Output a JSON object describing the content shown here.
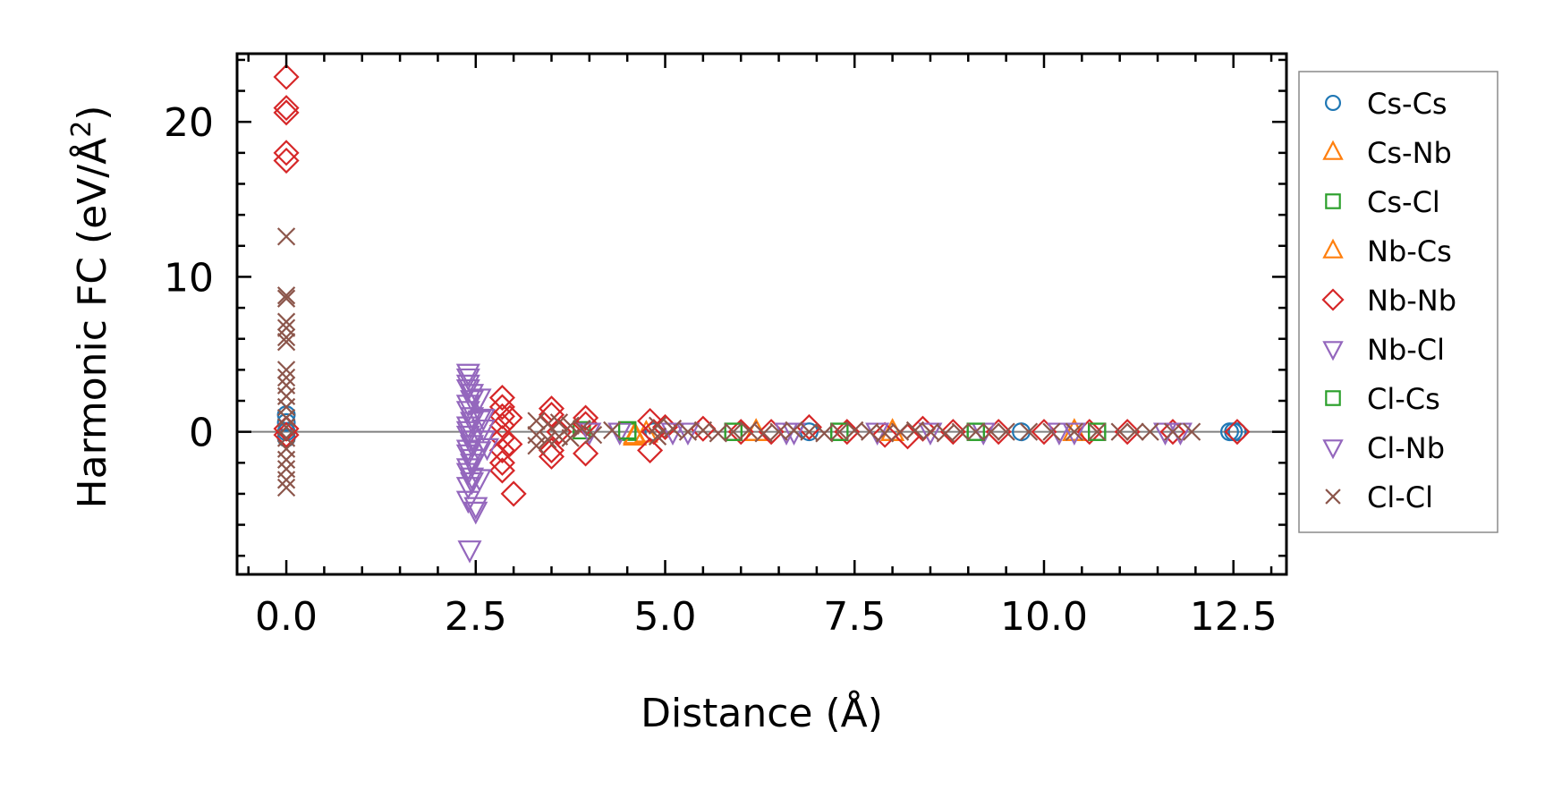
{
  "chart_data": {
    "type": "scatter",
    "title": "",
    "xlabel": "Distance (Å)",
    "ylabel": "Harmonic FC (eV/Å",
    "ylabel_sup": "2",
    "ylabel_end": ")",
    "xlim": [
      -0.65,
      13.2
    ],
    "ylim": [
      -9.2,
      24.4
    ],
    "xticks": [
      0.0,
      2.5,
      5.0,
      7.5,
      10.0,
      12.5
    ],
    "xtick_labels": [
      "0.0",
      "2.5",
      "5.0",
      "7.5",
      "10.0",
      "12.5"
    ],
    "yticks": [
      0,
      10,
      20
    ],
    "ytick_labels": [
      "0",
      "10",
      "20"
    ],
    "grid": false,
    "zero_line": true,
    "legend_position": "right",
    "series": [
      {
        "name": "Cs-Cs",
        "marker": "circle",
        "color": "#1f77b4",
        "points": [
          [
            0.0,
            1.1
          ],
          [
            0.0,
            0.6
          ],
          [
            0.0,
            0.0
          ],
          [
            0.0,
            -0.4
          ],
          [
            4.85,
            0.0
          ],
          [
            6.9,
            0.0
          ],
          [
            9.7,
            0.0
          ],
          [
            12.45,
            0.0
          ],
          [
            12.5,
            0.0
          ],
          [
            12.55,
            0.0
          ]
        ]
      },
      {
        "name": "Cs-Nb",
        "marker": "triangle-up",
        "color": "#ff7f0e",
        "points": [
          [
            4.6,
            -0.2
          ],
          [
            4.75,
            -0.1
          ],
          [
            6.2,
            0.0
          ],
          [
            8.0,
            0.0
          ],
          [
            10.4,
            0.0
          ]
        ]
      },
      {
        "name": "Cs-Cl",
        "marker": "square",
        "color": "#2ca02c",
        "points": [
          [
            3.9,
            0.1
          ],
          [
            4.5,
            0.0
          ],
          [
            5.9,
            0.0
          ],
          [
            7.3,
            0.0
          ],
          [
            9.1,
            0.0
          ],
          [
            10.7,
            0.0
          ]
        ]
      },
      {
        "name": "Nb-Cs",
        "marker": "triangle-up",
        "color": "#ff7f0e",
        "points": [
          [
            4.6,
            -0.3
          ],
          [
            6.2,
            0.0
          ],
          [
            8.0,
            0.0
          ],
          [
            10.4,
            0.0
          ]
        ]
      },
      {
        "name": "Nb-Nb",
        "marker": "diamond",
        "color": "#d62728",
        "points": [
          [
            0.0,
            22.9
          ],
          [
            0.0,
            20.9
          ],
          [
            0.0,
            20.6
          ],
          [
            0.0,
            18.0
          ],
          [
            0.0,
            17.5
          ],
          [
            0.0,
            0.2
          ],
          [
            0.0,
            -0.2
          ],
          [
            2.85,
            2.2
          ],
          [
            2.85,
            1.6
          ],
          [
            2.85,
            1.0
          ],
          [
            2.85,
            0.4
          ],
          [
            2.85,
            -0.4
          ],
          [
            2.85,
            -1.2
          ],
          [
            2.85,
            -2.0
          ],
          [
            2.85,
            -2.5
          ],
          [
            2.95,
            0.9
          ],
          [
            2.95,
            -0.8
          ],
          [
            3.0,
            -4.0
          ],
          [
            3.5,
            1.5
          ],
          [
            3.5,
            1.1
          ],
          [
            3.5,
            -1.2
          ],
          [
            3.5,
            -1.6
          ],
          [
            3.6,
            0.0
          ],
          [
            3.95,
            0.9
          ],
          [
            3.95,
            0.5
          ],
          [
            3.95,
            -1.4
          ],
          [
            4.8,
            0.7
          ],
          [
            4.8,
            -1.2
          ],
          [
            4.85,
            0.0
          ],
          [
            5.0,
            0.3
          ],
          [
            5.5,
            0.2
          ],
          [
            6.0,
            0.0
          ],
          [
            6.4,
            0.0
          ],
          [
            6.9,
            0.3
          ],
          [
            7.4,
            0.0
          ],
          [
            7.9,
            -0.2
          ],
          [
            8.2,
            -0.3
          ],
          [
            8.4,
            0.2
          ],
          [
            8.8,
            0.0
          ],
          [
            9.4,
            0.0
          ],
          [
            10.0,
            0.0
          ],
          [
            10.6,
            0.0
          ],
          [
            11.1,
            0.0
          ],
          [
            11.7,
            0.0
          ],
          [
            12.55,
            0.0
          ]
        ]
      },
      {
        "name": "Nb-Cl",
        "marker": "triangle-down",
        "color": "#9467bd",
        "points": [
          [
            2.4,
            3.8
          ],
          [
            2.4,
            3.1
          ],
          [
            2.45,
            2.5
          ],
          [
            2.4,
            1.8
          ],
          [
            2.45,
            1.0
          ],
          [
            2.4,
            0.4
          ],
          [
            2.4,
            -0.2
          ],
          [
            2.45,
            -0.8
          ],
          [
            2.4,
            -1.4
          ],
          [
            2.45,
            -2.0
          ],
          [
            2.4,
            -2.6
          ],
          [
            2.45,
            -3.2
          ],
          [
            2.4,
            -4.4
          ],
          [
            2.5,
            -5.1
          ],
          [
            2.42,
            -7.6
          ],
          [
            2.55,
            2.2
          ],
          [
            2.55,
            0.8
          ],
          [
            2.55,
            -1.2
          ],
          [
            2.6,
            0.2
          ],
          [
            2.55,
            -3.0
          ],
          [
            2.65,
            -1.0
          ],
          [
            4.4,
            0.0
          ],
          [
            5.3,
            0.0
          ],
          [
            6.6,
            0.0
          ],
          [
            7.8,
            0.0
          ],
          [
            9.2,
            0.0
          ],
          [
            10.4,
            0.0
          ],
          [
            11.6,
            0.0
          ]
        ]
      },
      {
        "name": "Cl-Cs",
        "marker": "square",
        "color": "#2ca02c",
        "points": [
          [
            4.5,
            0.1
          ],
          [
            5.9,
            0.0
          ],
          [
            7.3,
            0.0
          ],
          [
            9.1,
            0.0
          ],
          [
            10.7,
            0.0
          ]
        ]
      },
      {
        "name": "Cl-Nb",
        "marker": "triangle-down",
        "color": "#9467bd",
        "points": [
          [
            2.4,
            3.5
          ],
          [
            2.4,
            2.8
          ],
          [
            2.45,
            2.1
          ],
          [
            2.4,
            1.4
          ],
          [
            2.45,
            0.7
          ],
          [
            2.4,
            0.1
          ],
          [
            2.45,
            -0.5
          ],
          [
            2.4,
            -1.1
          ],
          [
            2.45,
            -1.7
          ],
          [
            2.4,
            -2.3
          ],
          [
            2.45,
            -2.9
          ],
          [
            2.4,
            -3.5
          ],
          [
            2.5,
            -4.8
          ],
          [
            2.6,
            0.9
          ],
          [
            2.6,
            -0.5
          ],
          [
            4.0,
            0.0
          ],
          [
            5.1,
            0.0
          ],
          [
            6.7,
            0.0
          ],
          [
            8.5,
            0.0
          ],
          [
            10.2,
            0.0
          ],
          [
            11.8,
            0.0
          ]
        ]
      },
      {
        "name": "Cl-Cl",
        "marker": "x",
        "color": "#8c564b",
        "points": [
          [
            0.0,
            12.6
          ],
          [
            0.0,
            8.8
          ],
          [
            0.0,
            8.6
          ],
          [
            0.0,
            7.1
          ],
          [
            0.0,
            6.7
          ],
          [
            0.0,
            6.1
          ],
          [
            0.0,
            5.8
          ],
          [
            0.0,
            4.0
          ],
          [
            0.0,
            3.5
          ],
          [
            0.0,
            3.0
          ],
          [
            0.0,
            2.3
          ],
          [
            0.0,
            1.6
          ],
          [
            0.0,
            0.9
          ],
          [
            0.0,
            0.3
          ],
          [
            0.0,
            -0.4
          ],
          [
            0.0,
            -1.1
          ],
          [
            0.0,
            -1.8
          ],
          [
            0.0,
            -2.4
          ],
          [
            0.0,
            -3.1
          ],
          [
            0.0,
            -3.6
          ],
          [
            3.3,
            0.7
          ],
          [
            3.3,
            -0.2
          ],
          [
            3.3,
            -0.9
          ],
          [
            3.45,
            0.5
          ],
          [
            3.45,
            -0.5
          ],
          [
            3.6,
            0.6
          ],
          [
            3.6,
            -0.3
          ],
          [
            3.75,
            0.4
          ],
          [
            3.75,
            -0.4
          ],
          [
            3.9,
            0.2
          ],
          [
            4.05,
            -0.2
          ],
          [
            4.3,
            0.1
          ],
          [
            4.9,
            0.4
          ],
          [
            4.9,
            -0.3
          ],
          [
            5.1,
            0.2
          ],
          [
            5.3,
            0.0
          ],
          [
            5.5,
            0.1
          ],
          [
            5.7,
            -0.1
          ],
          [
            5.9,
            0.0
          ],
          [
            6.1,
            0.1
          ],
          [
            6.3,
            -0.1
          ],
          [
            6.5,
            0.0
          ],
          [
            6.7,
            0.1
          ],
          [
            6.9,
            0.0
          ],
          [
            7.1,
            -0.1
          ],
          [
            7.3,
            0.0
          ],
          [
            7.5,
            0.1
          ],
          [
            7.7,
            0.0
          ],
          [
            7.9,
            -0.1
          ],
          [
            8.1,
            0.0
          ],
          [
            8.3,
            0.1
          ],
          [
            8.5,
            0.0
          ],
          [
            8.7,
            -0.1
          ],
          [
            8.9,
            0.0
          ],
          [
            9.1,
            0.0
          ],
          [
            9.3,
            0.0
          ],
          [
            9.5,
            0.0
          ],
          [
            9.8,
            0.0
          ],
          [
            10.1,
            0.0
          ],
          [
            10.4,
            0.0
          ],
          [
            10.7,
            0.0
          ],
          [
            11.0,
            0.0
          ],
          [
            11.2,
            0.0
          ],
          [
            11.4,
            0.0
          ],
          [
            11.7,
            0.0
          ],
          [
            11.95,
            0.0
          ]
        ]
      }
    ]
  }
}
